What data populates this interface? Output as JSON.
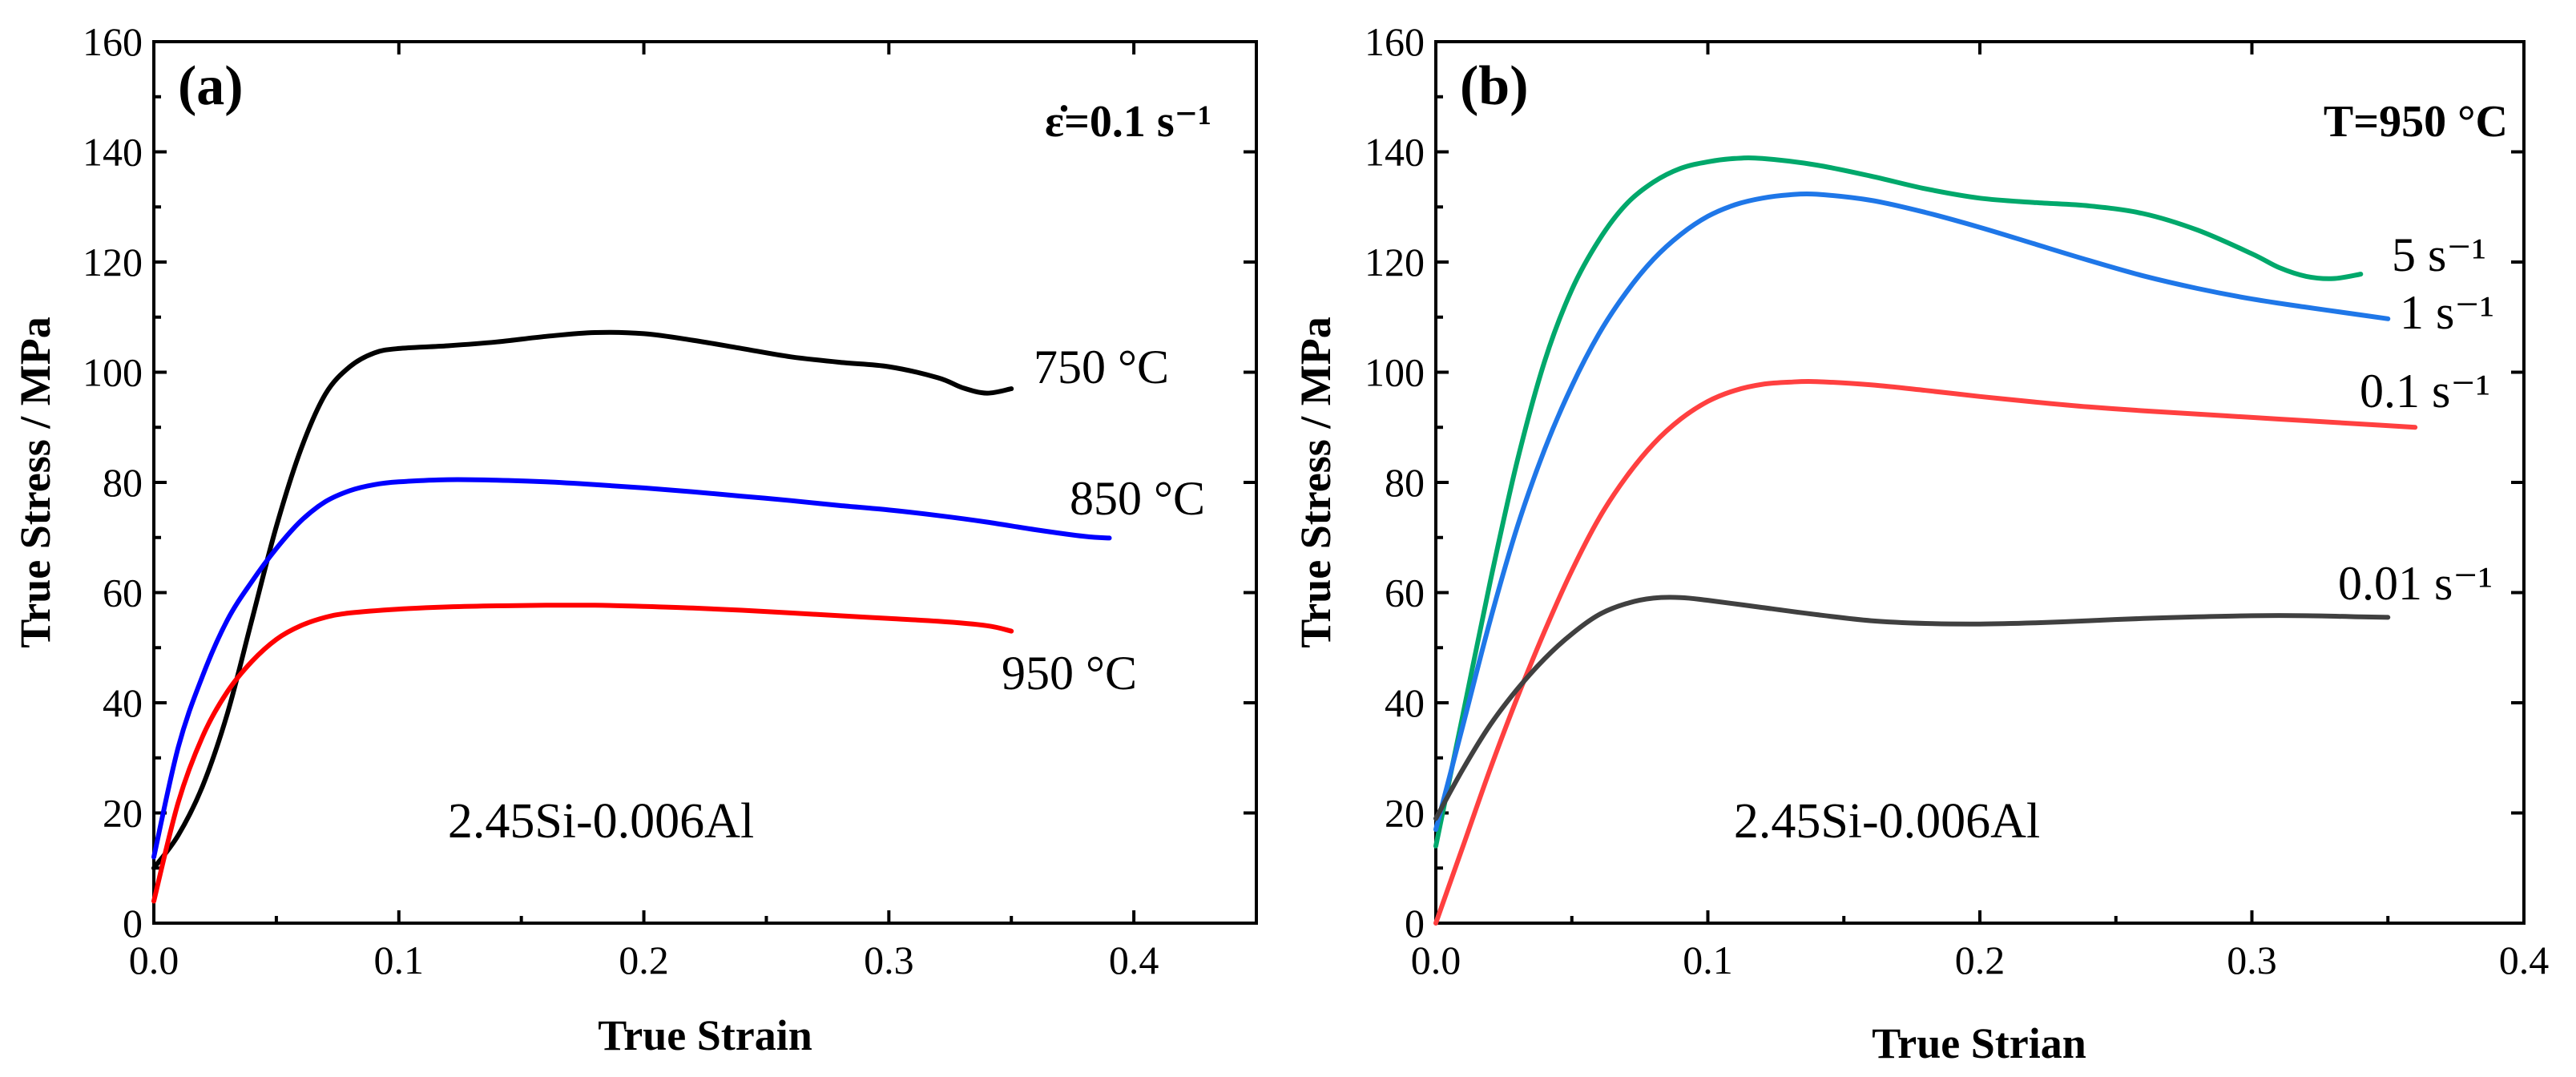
{
  "chart_data": [
    {
      "type": "line",
      "panel_label": "(a)",
      "condition_label": "ε̇=0.1 s⁻¹",
      "note": "2.45Si-0.006Al",
      "xlabel": "True Strain",
      "ylabel": "True Stress / MPa",
      "xlim": [
        0,
        0.45
      ],
      "ylim": [
        0,
        160
      ],
      "xticks": [
        "0.0",
        "0.1",
        "0.2",
        "0.3",
        "0.4"
      ],
      "xtick_values": [
        0,
        0.1,
        0.2,
        0.3,
        0.4
      ],
      "yticks": [
        "0",
        "20",
        "40",
        "60",
        "80",
        "100",
        "120",
        "140",
        "160"
      ],
      "ytick_values": [
        0,
        20,
        40,
        60,
        80,
        100,
        120,
        140,
        160
      ],
      "legend": "curve labels at line ends",
      "series": [
        {
          "name": "750 °C",
          "color": "#000000",
          "points": [
            [
              0.0,
              10
            ],
            [
              0.01,
              16
            ],
            [
              0.02,
              25
            ],
            [
              0.03,
              38
            ],
            [
              0.04,
              55
            ],
            [
              0.05,
              72
            ],
            [
              0.06,
              86
            ],
            [
              0.07,
              96
            ],
            [
              0.08,
              101
            ],
            [
              0.09,
              103.5
            ],
            [
              0.1,
              104.3
            ],
            [
              0.12,
              104.8
            ],
            [
              0.14,
              105.5
            ],
            [
              0.16,
              106.5
            ],
            [
              0.18,
              107.2
            ],
            [
              0.2,
              107
            ],
            [
              0.22,
              105.8
            ],
            [
              0.24,
              104.3
            ],
            [
              0.26,
              102.8
            ],
            [
              0.28,
              101.8
            ],
            [
              0.3,
              101
            ],
            [
              0.32,
              99
            ],
            [
              0.33,
              97.2
            ],
            [
              0.34,
              96.2
            ],
            [
              0.35,
              97
            ]
          ]
        },
        {
          "name": "850 °C",
          "color": "#0000ff",
          "points": [
            [
              0.0,
              12
            ],
            [
              0.01,
              32
            ],
            [
              0.02,
              45
            ],
            [
              0.03,
              55
            ],
            [
              0.04,
              62
            ],
            [
              0.05,
              68
            ],
            [
              0.06,
              73
            ],
            [
              0.07,
              76.5
            ],
            [
              0.08,
              78.5
            ],
            [
              0.09,
              79.6
            ],
            [
              0.1,
              80.1
            ],
            [
              0.12,
              80.5
            ],
            [
              0.14,
              80.4
            ],
            [
              0.16,
              80.1
            ],
            [
              0.18,
              79.6
            ],
            [
              0.2,
              79
            ],
            [
              0.22,
              78.3
            ],
            [
              0.24,
              77.5
            ],
            [
              0.26,
              76.7
            ],
            [
              0.28,
              75.8
            ],
            [
              0.3,
              75
            ],
            [
              0.32,
              74
            ],
            [
              0.34,
              72.8
            ],
            [
              0.36,
              71.4
            ],
            [
              0.38,
              70.2
            ],
            [
              0.39,
              69.9
            ]
          ]
        },
        {
          "name": "950 °C",
          "color": "#ff0000",
          "points": [
            [
              0.0,
              4
            ],
            [
              0.01,
              22
            ],
            [
              0.02,
              34
            ],
            [
              0.03,
              42
            ],
            [
              0.04,
              47.5
            ],
            [
              0.05,
              51.5
            ],
            [
              0.06,
              54
            ],
            [
              0.07,
              55.5
            ],
            [
              0.08,
              56.3
            ],
            [
              0.1,
              57
            ],
            [
              0.12,
              57.4
            ],
            [
              0.14,
              57.6
            ],
            [
              0.16,
              57.7
            ],
            [
              0.18,
              57.7
            ],
            [
              0.2,
              57.5
            ],
            [
              0.22,
              57.2
            ],
            [
              0.24,
              56.8
            ],
            [
              0.26,
              56.3
            ],
            [
              0.28,
              55.8
            ],
            [
              0.3,
              55.3
            ],
            [
              0.32,
              54.8
            ],
            [
              0.34,
              54
            ],
            [
              0.35,
              53
            ]
          ]
        }
      ]
    },
    {
      "type": "line",
      "panel_label": "(b)",
      "condition_label": "T=950 °C",
      "note": "2.45Si-0.006Al",
      "xlabel": "True Strian",
      "ylabel": "True Stress / MPa",
      "xlim": [
        0,
        0.4
      ],
      "ylim": [
        0,
        160
      ],
      "xticks": [
        "0.0",
        "0.1",
        "0.2",
        "0.3",
        "0.4"
      ],
      "xtick_values": [
        0,
        0.1,
        0.2,
        0.3,
        0.4
      ],
      "yticks": [
        "0",
        "20",
        "40",
        "60",
        "80",
        "100",
        "120",
        "140",
        "160"
      ],
      "ytick_values": [
        0,
        20,
        40,
        60,
        80,
        100,
        120,
        140,
        160
      ],
      "legend": "curve labels at line ends",
      "series": [
        {
          "name": "5 s⁻¹",
          "color": "#00a86b",
          "points": [
            [
              0.0,
              14
            ],
            [
              0.01,
              38
            ],
            [
              0.02,
              62
            ],
            [
              0.03,
              84
            ],
            [
              0.04,
              102
            ],
            [
              0.05,
              115
            ],
            [
              0.06,
              124
            ],
            [
              0.07,
              130.5
            ],
            [
              0.08,
              134.5
            ],
            [
              0.09,
              137
            ],
            [
              0.1,
              138.2
            ],
            [
              0.11,
              138.8
            ],
            [
              0.12,
              138.8
            ],
            [
              0.14,
              137.6
            ],
            [
              0.16,
              135.6
            ],
            [
              0.18,
              133.3
            ],
            [
              0.2,
              131.6
            ],
            [
              0.22,
              130.8
            ],
            [
              0.24,
              130.2
            ],
            [
              0.26,
              128.8
            ],
            [
              0.28,
              125.8
            ],
            [
              0.3,
              121.5
            ],
            [
              0.31,
              119
            ],
            [
              0.32,
              117.4
            ],
            [
              0.33,
              117
            ],
            [
              0.34,
              117.8
            ]
          ]
        },
        {
          "name": "1 s⁻¹",
          "color": "#1f77e8",
          "points": [
            [
              0.0,
              17
            ],
            [
              0.01,
              36
            ],
            [
              0.02,
              55
            ],
            [
              0.03,
              72
            ],
            [
              0.04,
              86
            ],
            [
              0.05,
              97.5
            ],
            [
              0.06,
              107
            ],
            [
              0.07,
              114.5
            ],
            [
              0.08,
              120.5
            ],
            [
              0.09,
              125
            ],
            [
              0.1,
              128.3
            ],
            [
              0.11,
              130.4
            ],
            [
              0.12,
              131.6
            ],
            [
              0.13,
              132.2
            ],
            [
              0.14,
              132.3
            ],
            [
              0.16,
              131.2
            ],
            [
              0.18,
              129
            ],
            [
              0.2,
              126.3
            ],
            [
              0.22,
              123.3
            ],
            [
              0.24,
              120.3
            ],
            [
              0.26,
              117.5
            ],
            [
              0.28,
              115.2
            ],
            [
              0.3,
              113.3
            ],
            [
              0.32,
              111.8
            ],
            [
              0.34,
              110.4
            ],
            [
              0.35,
              109.7
            ]
          ]
        },
        {
          "name": "0.1 s⁻¹",
          "color": "#ff4040",
          "points": [
            [
              0.0,
              0
            ],
            [
              0.01,
              14
            ],
            [
              0.02,
              28
            ],
            [
              0.03,
              41
            ],
            [
              0.04,
              53
            ],
            [
              0.05,
              64
            ],
            [
              0.06,
              73.5
            ],
            [
              0.07,
              81
            ],
            [
              0.08,
              87
            ],
            [
              0.09,
              91.5
            ],
            [
              0.1,
              94.7
            ],
            [
              0.11,
              96.7
            ],
            [
              0.12,
              97.8
            ],
            [
              0.13,
              98.2
            ],
            [
              0.14,
              98.3
            ],
            [
              0.16,
              97.7
            ],
            [
              0.18,
              96.7
            ],
            [
              0.2,
              95.6
            ],
            [
              0.22,
              94.6
            ],
            [
              0.24,
              93.7
            ],
            [
              0.26,
              93
            ],
            [
              0.28,
              92.4
            ],
            [
              0.3,
              91.8
            ],
            [
              0.32,
              91.2
            ],
            [
              0.34,
              90.6
            ],
            [
              0.36,
              90
            ]
          ]
        },
        {
          "name": "0.01 s⁻¹",
          "color": "#404040",
          "points": [
            [
              0.0,
              19
            ],
            [
              0.01,
              28
            ],
            [
              0.02,
              36
            ],
            [
              0.03,
              42.5
            ],
            [
              0.04,
              48
            ],
            [
              0.05,
              52.5
            ],
            [
              0.06,
              56
            ],
            [
              0.07,
              58
            ],
            [
              0.08,
              59
            ],
            [
              0.09,
              59.1
            ],
            [
              0.1,
              58.6
            ],
            [
              0.12,
              57.3
            ],
            [
              0.14,
              56
            ],
            [
              0.16,
              54.9
            ],
            [
              0.18,
              54.4
            ],
            [
              0.2,
              54.3
            ],
            [
              0.22,
              54.5
            ],
            [
              0.24,
              54.9
            ],
            [
              0.26,
              55.3
            ],
            [
              0.28,
              55.6
            ],
            [
              0.3,
              55.8
            ],
            [
              0.32,
              55.8
            ],
            [
              0.34,
              55.6
            ],
            [
              0.35,
              55.5
            ]
          ]
        }
      ]
    }
  ]
}
